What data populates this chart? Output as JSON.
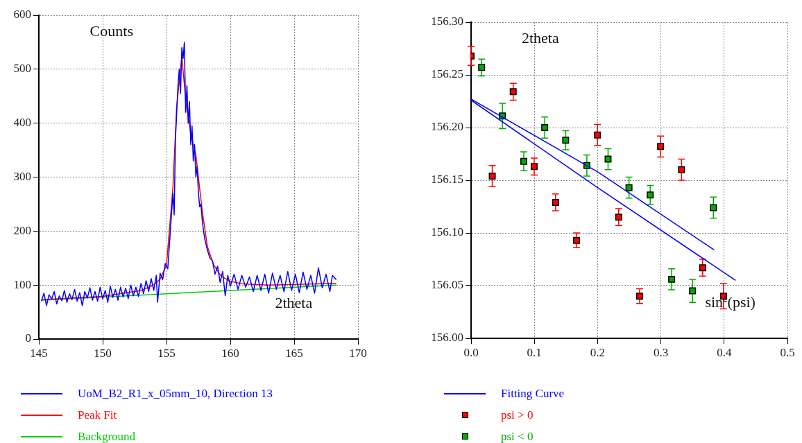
{
  "chart_data": [
    {
      "type": "line",
      "xlabel": "2theta",
      "ylabel": "Counts",
      "xlim": [
        145,
        170
      ],
      "xticks": [
        145,
        150,
        155,
        160,
        165,
        170
      ],
      "ylim": [
        0,
        600
      ],
      "yticks": [
        0,
        100,
        200,
        300,
        400,
        500,
        600
      ],
      "grid": true,
      "legend": "bottom",
      "series": [
        {
          "name": "UoM_B2_R1_x_05mm_10, Direction 13",
          "color": "#0000ff",
          "x": [
            145.2,
            145.4,
            145.6,
            145.8,
            146.0,
            146.2,
            146.4,
            146.6,
            146.8,
            147.0,
            147.2,
            147.4,
            147.6,
            147.8,
            148.0,
            148.2,
            148.4,
            148.6,
            148.8,
            149.0,
            149.2,
            149.4,
            149.6,
            149.8,
            150.0,
            150.2,
            150.4,
            150.6,
            150.8,
            151.0,
            151.2,
            151.4,
            151.6,
            151.8,
            152.0,
            152.2,
            152.4,
            152.6,
            152.8,
            153.0,
            153.2,
            153.4,
            153.6,
            153.8,
            154.0,
            154.2,
            154.3,
            154.5,
            154.7,
            154.9,
            155.1,
            155.3,
            155.5,
            155.6,
            155.7,
            155.8,
            155.9,
            156.0,
            156.1,
            156.2,
            156.3,
            156.4,
            156.5,
            156.6,
            156.7,
            156.8,
            156.9,
            157.0,
            157.1,
            157.2,
            157.3,
            157.4,
            157.5,
            157.6,
            157.7,
            157.8,
            157.9,
            158.0,
            158.2,
            158.4,
            158.6,
            158.8,
            159.0,
            159.2,
            159.4,
            159.6,
            159.8,
            160.0,
            160.3,
            160.6,
            160.9,
            161.2,
            161.5,
            161.8,
            162.1,
            162.4,
            162.7,
            163.0,
            163.3,
            163.6,
            163.9,
            164.2,
            164.5,
            164.8,
            165.1,
            165.4,
            165.7,
            166.0,
            166.3,
            166.6,
            166.9,
            167.2,
            167.5,
            167.8,
            168.0,
            168.3
          ],
          "values": [
            70,
            85,
            62,
            82,
            74,
            88,
            65,
            80,
            71,
            90,
            68,
            84,
            73,
            92,
            70,
            86,
            62,
            88,
            76,
            95,
            72,
            88,
            70,
            96,
            74,
            90,
            68,
            98,
            77,
            92,
            72,
            96,
            78,
            94,
            75,
            100,
            80,
            96,
            79,
            103,
            84,
            108,
            88,
            112,
            90,
            118,
            68,
            122,
            110,
            140,
            130,
            200,
            270,
            230,
            370,
            420,
            470,
            500,
            455,
            540,
            520,
            550,
            420,
            470,
            400,
            440,
            360,
            395,
            330,
            360,
            300,
            320,
            270,
            245,
            250,
            220,
            200,
            185,
            165,
            150,
            145,
            120,
            135,
            105,
            125,
            80,
            118,
            98,
            120,
            92,
            118,
            96,
            115,
            88,
            118,
            90,
            120,
            85,
            122,
            92,
            118,
            88,
            125,
            90,
            120,
            86,
            124,
            92,
            118,
            85,
            132,
            95,
            120,
            88,
            118,
            110
          ]
        },
        {
          "name": "Peak Fit",
          "color": "#ff0000",
          "x": [
            145.2,
            150,
            153,
            154,
            154.5,
            155,
            155.5,
            155.8,
            156.2,
            156.5,
            156.9,
            157.3,
            157.8,
            158.2,
            158.7,
            159.3,
            160,
            161,
            163,
            168.3
          ],
          "values": [
            73,
            79,
            90,
            100,
            111,
            137,
            280,
            432,
            523,
            445,
            380,
            341,
            237,
            172,
            137,
            116,
            107,
            102,
            100,
            103
          ]
        },
        {
          "name": "Background",
          "color": "#00cc00",
          "x": [
            145.2,
            168.3
          ],
          "values": [
            72,
            100
          ]
        }
      ]
    },
    {
      "type": "scatter",
      "xlabel": "sin$^{2}$(psi)",
      "ylabel": "2theta",
      "xlim": [
        0,
        0.5
      ],
      "xticks": [
        {
          "value": 0,
          "label": "0.0"
        },
        {
          "value": 0.1,
          "label": "0.1"
        },
        {
          "value": 0.2,
          "label": "0.2"
        },
        {
          "value": 0.3,
          "label": "0.3"
        },
        {
          "value": 0.4,
          "label": "0.4"
        },
        {
          "value": 0.5,
          "label": "0.5"
        }
      ],
      "ylim": [
        156,
        156.3
      ],
      "yticks": [
        {
          "value": 156,
          "label": "156.00"
        },
        156.05,
        {
          "value": 156.1,
          "label": "156.10"
        },
        156.15,
        {
          "value": 156.2,
          "label": "156.20"
        },
        156.25,
        {
          "value": 156.3,
          "label": "156.30"
        }
      ],
      "grid": true,
      "legend": "bottom",
      "series": [
        {
          "type": "line",
          "name": "Fitting Curve",
          "marker": "none",
          "color": "#0000ff",
          "x": [
            0,
            0.2,
            0.384
          ],
          "values": [
            156.227,
            156.158,
            156.084
          ]
        },
        {
          "type": "line",
          "marker": "none",
          "color": "#0000ff",
          "x": [
            0,
            0.2,
            0.418
          ],
          "values": [
            156.226,
            156.143,
            156.055
          ]
        },
        {
          "name": "psi > 0",
          "marker": "square",
          "color": "#ff0000",
          "x": [
            0,
            0.0335,
            0.0666,
            0.0997,
            0.1336,
            0.1667,
            0.1998,
            0.2333,
            0.2664,
            0.2995,
            0.3326,
            0.366,
            0.399
          ],
          "values": [
            156.268,
            156.154,
            156.234,
            156.163,
            156.129,
            156.093,
            156.193,
            156.115,
            156.04,
            156.182,
            156.16,
            156.067,
            156.04
          ],
          "errors": [
            0.009,
            0.01,
            0.008,
            0.008,
            0.008,
            0.007,
            0.01,
            0.008,
            0.007,
            0.01,
            0.01,
            0.008,
            0.012
          ]
        },
        {
          "name": "psi < 0",
          "marker": "square",
          "color": "#00aa00",
          "x": [
            0.0167,
            0.0495,
            0.0833,
            0.1164,
            0.1495,
            0.183,
            0.2165,
            0.2496,
            0.2831,
            0.317,
            0.35,
            0.383
          ],
          "values": [
            156.257,
            156.211,
            156.168,
            156.2,
            156.188,
            156.164,
            156.17,
            156.143,
            156.136,
            156.056,
            156.045,
            156.124
          ],
          "errors": [
            0.008,
            0.012,
            0.009,
            0.01,
            0.009,
            0.01,
            0.01,
            0.01,
            0.009,
            0.01,
            0.011,
            0.01
          ]
        }
      ]
    }
  ]
}
